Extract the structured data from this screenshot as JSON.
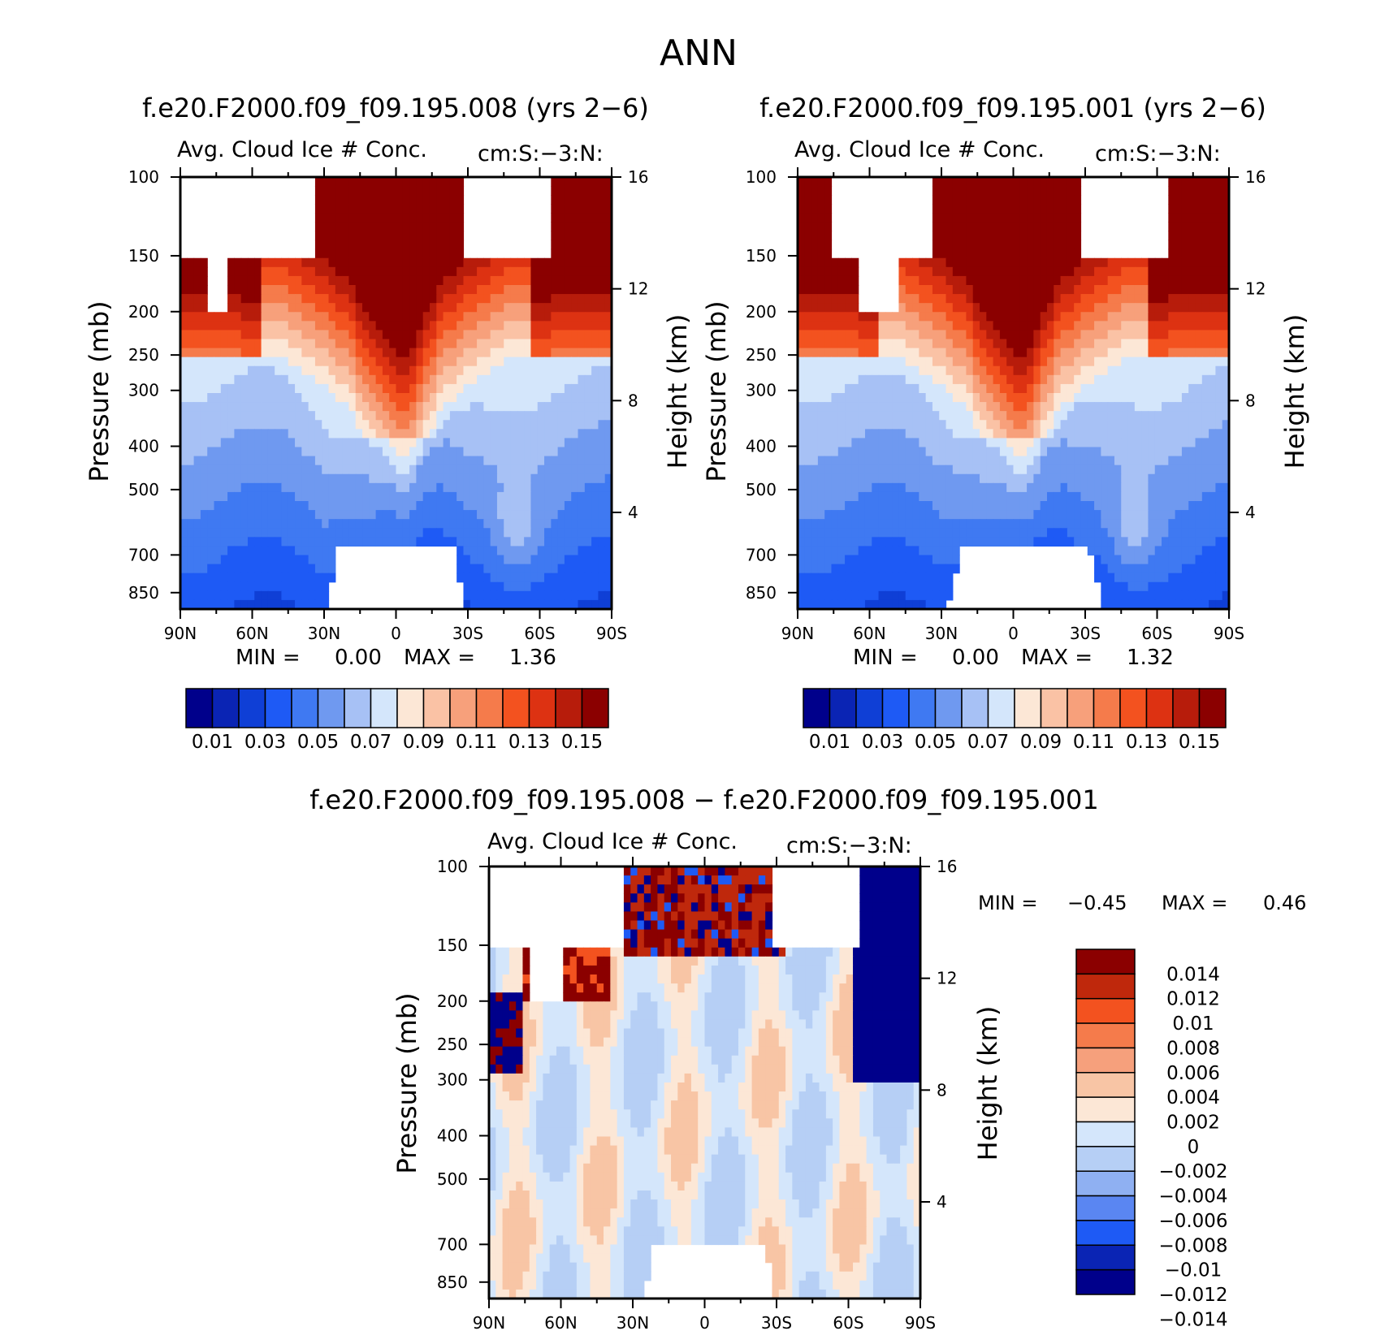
{
  "page_title": "ANN",
  "colors": {
    "seq": [
      "#00008b",
      "#0a24b4",
      "#0f3fd6",
      "#1e5af5",
      "#3f79f2",
      "#6f99f0",
      "#a7c1f5",
      "#d4e6fb",
      "#fce7d6",
      "#fac2a5",
      "#f7a07b",
      "#f57b4b",
      "#f3521f",
      "#dd3212",
      "#b71c0b",
      "#8b0000"
    ],
    "diff": [
      "#00008b",
      "#0a24b4",
      "#1e5af5",
      "#5a86f2",
      "#8fb0f2",
      "#b6cff5",
      "#d4e6fb",
      "#fce7d6",
      "#f8c5a5",
      "#f6a07c",
      "#f57b4b",
      "#f3521f",
      "#bf280c",
      "#8b0000"
    ]
  },
  "panels": [
    {
      "run_title": "f.e20.F2000.f09_f09.195.008 (yrs 2−6)",
      "variable": "Avg. Cloud Ice # Conc.",
      "units": "cm:S:−3:N:",
      "y_label": "Pressure (mb)",
      "right_label": "Height (km)",
      "min_text": "MIN =",
      "min_value": "0.00",
      "max_text": "MAX =",
      "max_value": "1.36"
    },
    {
      "run_title": "f.e20.F2000.f09_f09.195.001 (yrs 2−6)",
      "variable": "Avg. Cloud Ice # Conc.",
      "units": "cm:S:−3:N:",
      "y_label": "Pressure (mb)",
      "right_label": "Height (km)",
      "min_text": "MIN =",
      "min_value": "0.00",
      "max_text": "MAX =",
      "max_value": "1.32"
    },
    {
      "run_title": "f.e20.F2000.f09_f09.195.008 − f.e20.F2000.f09_f09.195.001",
      "variable": "Avg. Cloud Ice # Conc.",
      "units": "cm:S:−3:N:",
      "y_label": "Pressure (mb)",
      "right_label": "Height (km)",
      "min_text": "MIN =",
      "min_value": "−0.45",
      "max_text": "MAX =",
      "max_value": "0.46"
    }
  ],
  "chart_data": [
    {
      "type": "heatmap",
      "title": "f.e20.F2000.f09_f09.195.008 (yrs 2−6)",
      "subtitle": "Avg. Cloud Ice # Conc.",
      "units": "cm:S:−3:N:",
      "ylabel": "Pressure (mb)",
      "y2label": "Height (km)",
      "x_ticks": [
        "90N",
        "60N",
        "30N",
        "0",
        "30S",
        "60S",
        "90S"
      ],
      "y_ticks": [
        "100",
        "150",
        "200",
        "250",
        "300",
        "400",
        "500",
        "700",
        "850"
      ],
      "y2_ticks": [
        "16",
        "12",
        "8",
        "4"
      ],
      "y_scale": "log",
      "ylim": [
        100,
        925
      ],
      "xlim": [
        90,
        -90
      ],
      "levels": [
        0.01,
        0.02,
        0.03,
        0.04,
        0.05,
        0.06,
        0.07,
        0.08,
        0.09,
        0.1,
        0.11,
        0.12,
        0.13,
        0.14,
        0.15
      ],
      "colorbar_labels": [
        "0.01",
        "0.03",
        "0.05",
        "0.07",
        "0.09",
        "0.11",
        "0.13",
        "0.15"
      ],
      "min": 0.0,
      "max": 1.36
    },
    {
      "type": "heatmap",
      "title": "f.e20.F2000.f09_f09.195.001 (yrs 2−6)",
      "subtitle": "Avg. Cloud Ice # Conc.",
      "units": "cm:S:−3:N:",
      "ylabel": "Pressure (mb)",
      "y2label": "Height (km)",
      "x_ticks": [
        "90N",
        "60N",
        "30N",
        "0",
        "30S",
        "60S",
        "90S"
      ],
      "y_ticks": [
        "100",
        "150",
        "200",
        "250",
        "300",
        "400",
        "500",
        "700",
        "850"
      ],
      "y2_ticks": [
        "16",
        "12",
        "8",
        "4"
      ],
      "y_scale": "log",
      "ylim": [
        100,
        925
      ],
      "xlim": [
        90,
        -90
      ],
      "levels": [
        0.01,
        0.02,
        0.03,
        0.04,
        0.05,
        0.06,
        0.07,
        0.08,
        0.09,
        0.1,
        0.11,
        0.12,
        0.13,
        0.14,
        0.15
      ],
      "colorbar_labels": [
        "0.01",
        "0.03",
        "0.05",
        "0.07",
        "0.09",
        "0.11",
        "0.13",
        "0.15"
      ],
      "min": 0.0,
      "max": 1.32
    },
    {
      "type": "heatmap",
      "title": "f.e20.F2000.f09_f09.195.008 − f.e20.F2000.f09_f09.195.001",
      "subtitle": "Avg. Cloud Ice # Conc.",
      "units": "cm:S:−3:N:",
      "ylabel": "Pressure (mb)",
      "y2label": "Height (km)",
      "x_ticks": [
        "90N",
        "60N",
        "30N",
        "0",
        "30S",
        "60S",
        "90S"
      ],
      "y_ticks": [
        "100",
        "150",
        "200",
        "250",
        "300",
        "400",
        "500",
        "700",
        "850"
      ],
      "y2_ticks": [
        "16",
        "12",
        "8",
        "4"
      ],
      "y_scale": "log",
      "ylim": [
        100,
        925
      ],
      "xlim": [
        90,
        -90
      ],
      "levels": [
        -0.014,
        -0.012,
        -0.01,
        -0.008,
        -0.006,
        -0.004,
        -0.002,
        0,
        0.002,
        0.004,
        0.006,
        0.008,
        0.01,
        0.012,
        0.014
      ],
      "colorbar_labels": [
        "0.014",
        "0.012",
        "0.01",
        "0.008",
        "0.006",
        "0.004",
        "0.002",
        "0",
        "−0.002",
        "−0.004",
        "−0.006",
        "−0.008",
        "−0.01",
        "−0.012",
        "−0.014"
      ],
      "min": -0.45,
      "max": 0.46
    }
  ]
}
